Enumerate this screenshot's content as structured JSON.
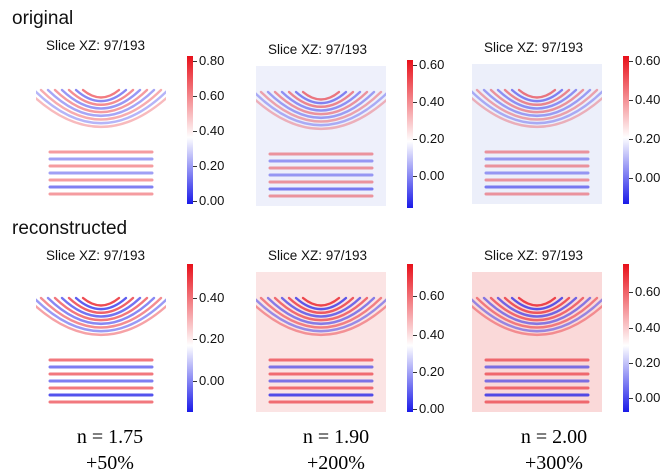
{
  "row_labels": {
    "top": "original",
    "bottom": "reconstructed"
  },
  "panels": {
    "top": [
      {
        "title": "Slice XZ: 97/193",
        "ticks": [
          "0.80",
          "0.60",
          "0.40",
          "0.20",
          "0.00"
        ],
        "tint": "#ffffff"
      },
      {
        "title": "Slice XZ: 97/193",
        "ticks": [
          "0.60",
          "0.40",
          "0.20",
          "0.00"
        ],
        "tint": "#eef0fb"
      },
      {
        "title": "Slice XZ: 97/193",
        "ticks": [
          "0.60",
          "0.40",
          "0.20",
          "0.00"
        ],
        "tint": "#eceffa"
      }
    ],
    "bottom": [
      {
        "title": "Slice XZ: 97/193",
        "ticks": [
          "0.40",
          "0.20",
          "0.00"
        ],
        "tint": "#ffffff"
      },
      {
        "title": "Slice XZ: 97/193",
        "ticks": [
          "0.60",
          "0.40",
          "0.20",
          "0.00"
        ],
        "tint": "#fbe4e4"
      },
      {
        "title": "Slice XZ: 97/193",
        "ticks": [
          "0.60",
          "0.40",
          "0.20",
          "0.00"
        ],
        "tint": "#fad9d9"
      }
    ]
  },
  "captions": [
    {
      "n": "n = 1.75",
      "pct": "+50%"
    },
    {
      "n": "n = 1.90",
      "pct": "+200%"
    },
    {
      "n": "n = 2.00",
      "pct": "+300%"
    }
  ],
  "colors": {
    "red": "#e8101a",
    "blue": "#1a1ae8",
    "white": "#ffffff"
  }
}
